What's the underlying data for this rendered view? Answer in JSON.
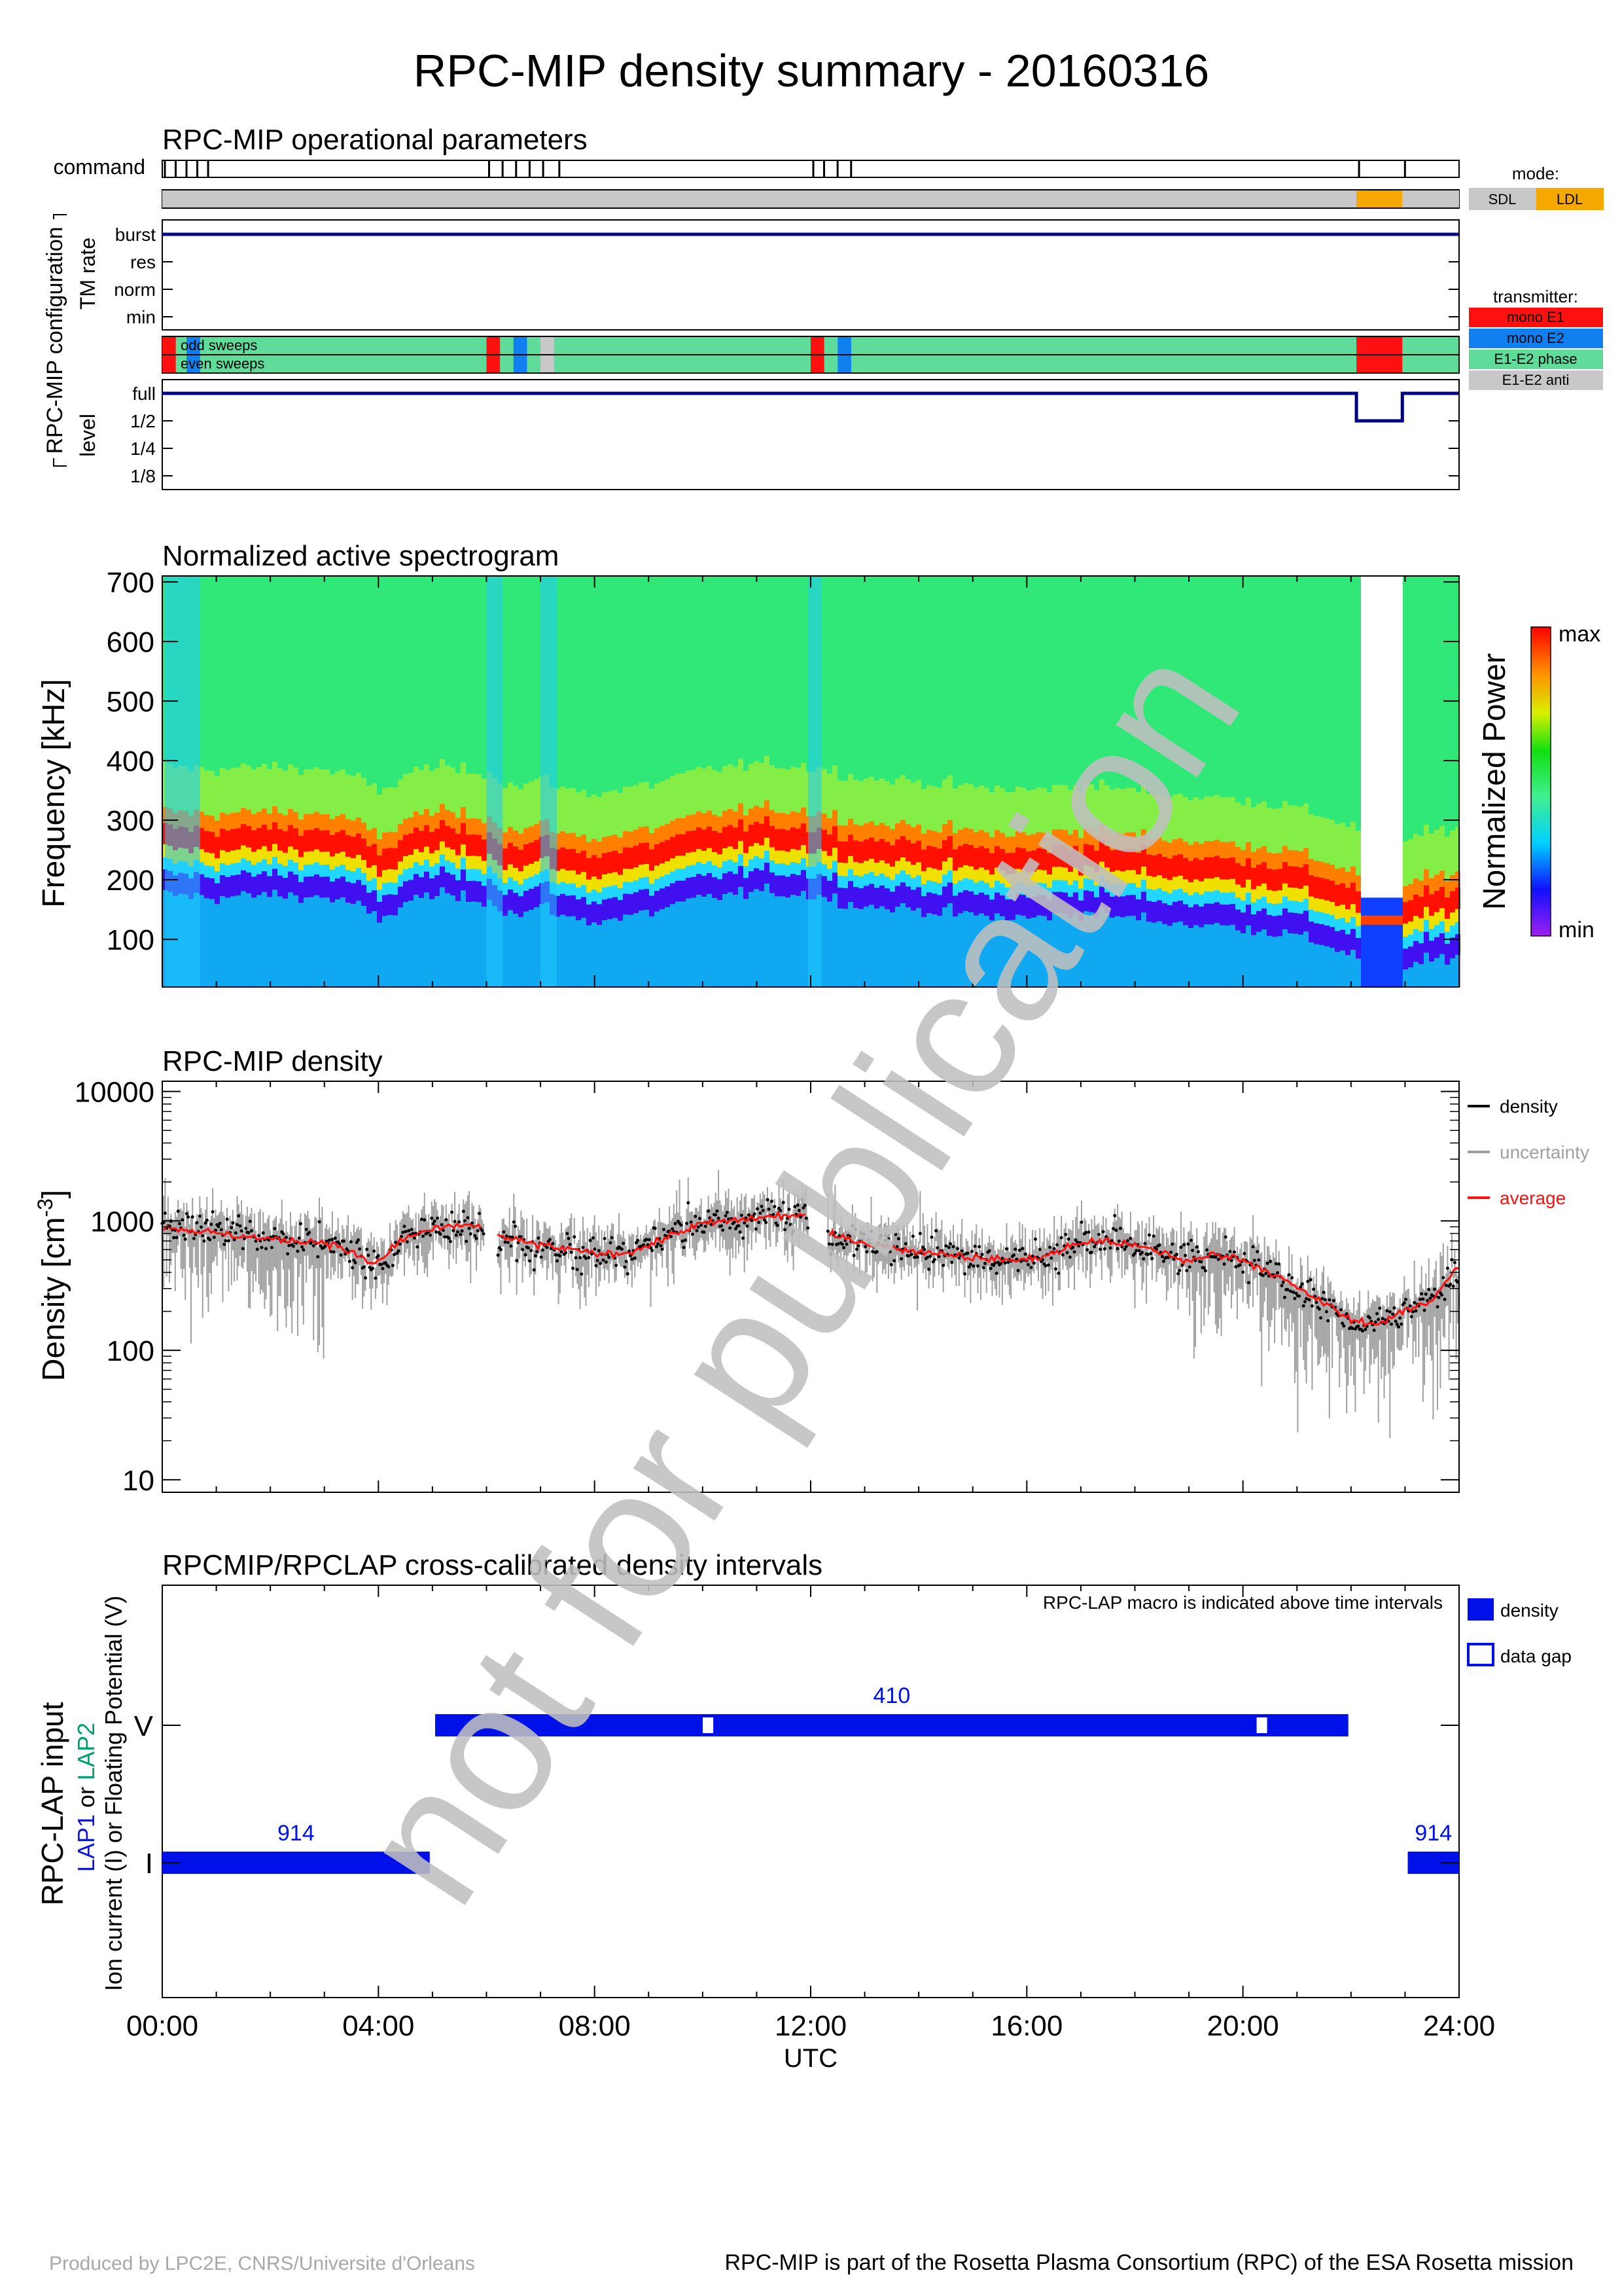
{
  "title": "RPC-MIP density summary - 20160316",
  "watermark": "not for publication",
  "footer": {
    "left": "Produced by LPC2E, CNRS/Universite d'Orleans",
    "right": "RPC-MIP is part of the Rosetta Plasma Consortium (RPC) of the ESA Rosetta mission"
  },
  "time_axis": {
    "label": "UTC",
    "ticks": [
      "00:00",
      "04:00",
      "08:00",
      "12:00",
      "16:00",
      "20:00",
      "24:00"
    ],
    "range_hours": [
      0,
      24
    ]
  },
  "colors": {
    "navy": "#000080",
    "blue": "#0010e8",
    "red": "#ff1010",
    "orange": "#f5a800",
    "gray": "#c8c8c8",
    "green": "#5fdc9a",
    "lapblue": "#1018d8",
    "lapgreen": "#00a070",
    "watermark": "#c0c0c0"
  },
  "ops": {
    "title": "RPC-MIP operational parameters",
    "config_label": "RPC-MIP configuration",
    "command_label": "command",
    "tm_rate_label": "TM rate",
    "tm_rate_levels": [
      "burst",
      "res",
      "norm",
      "min"
    ],
    "level_label": "level",
    "level_levels": [
      "full",
      "1/2",
      "1/4",
      "1/8"
    ],
    "sweeps_odd": "odd sweeps",
    "sweeps_even": "even sweeps",
    "mode_title": "mode:",
    "mode_legend": [
      {
        "label": "SDL",
        "color": "#c8c8c8"
      },
      {
        "label": "LDL",
        "color": "#f5a800"
      }
    ],
    "transmitter_title": "transmitter:",
    "transmitter_legend": [
      {
        "label": "mono E1",
        "color": "#ff1010"
      },
      {
        "label": "mono E2",
        "color": "#1080f0"
      },
      {
        "label": "E1-E2 phase",
        "color": "#5fdc9a"
      },
      {
        "label": "E1-E2 anti",
        "color": "#c8c8c8"
      }
    ],
    "command_hours": [
      0.0,
      0.2,
      0.4,
      0.6,
      0.8,
      6.0,
      6.25,
      6.5,
      6.75,
      7.0,
      7.3,
      12.0,
      12.2,
      12.45,
      12.7,
      22.1,
      22.95
    ],
    "mode_intervals": [
      {
        "start": 0,
        "end": 22.1,
        "mode": "SDL"
      },
      {
        "start": 22.1,
        "end": 22.95,
        "mode": "LDL"
      },
      {
        "start": 22.95,
        "end": 24,
        "mode": "SDL"
      }
    ],
    "transmitter_intervals": [
      {
        "start": 0.0,
        "end": 0.25,
        "tx": "mono E1"
      },
      {
        "start": 0.45,
        "end": 0.7,
        "tx": "mono E2"
      },
      {
        "start": 6.0,
        "end": 6.25,
        "tx": "mono E1"
      },
      {
        "start": 6.5,
        "end": 6.75,
        "tx": "mono E2"
      },
      {
        "start": 7.0,
        "end": 7.25,
        "tx": "E1-E2 anti"
      },
      {
        "start": 12.0,
        "end": 12.25,
        "tx": "mono E1"
      },
      {
        "start": 12.5,
        "end": 12.75,
        "tx": "mono E2"
      },
      {
        "start": 22.1,
        "end": 22.95,
        "tx": "mono E1"
      }
    ],
    "tm_rate_series": [
      {
        "start": 0,
        "end": 24,
        "rate": "burst"
      }
    ],
    "level_series": [
      {
        "start": 0,
        "end": 22.1,
        "level": "full"
      },
      {
        "start": 22.1,
        "end": 22.95,
        "level": "1/2"
      },
      {
        "start": 22.95,
        "end": 24,
        "level": "full"
      }
    ]
  },
  "chart_data": [
    {
      "type": "heatmap",
      "title": "Normalized active spectrogram",
      "ylabel": "Frequency [kHz]",
      "ylim": [
        20,
        710
      ],
      "yticks": [
        100,
        200,
        300,
        400,
        500,
        600,
        700
      ],
      "colorbar_label": "Normalized Power",
      "colorbar_max": "max",
      "colorbar_min": "min",
      "data_gaps_hours": [
        [
          22.1,
          22.95
        ]
      ],
      "ridge_khz": [
        [
          0,
          270
        ],
        [
          1,
          265
        ],
        [
          2,
          270
        ],
        [
          3,
          265
        ],
        [
          3.5,
          255
        ],
        [
          4.0,
          225
        ],
        [
          4.5,
          260
        ],
        [
          5,
          270
        ],
        [
          6,
          260
        ],
        [
          6.5,
          235
        ],
        [
          7,
          250
        ],
        [
          7.5,
          230
        ],
        [
          8,
          225
        ],
        [
          9,
          240
        ],
        [
          10,
          265
        ],
        [
          11,
          275
        ],
        [
          12,
          270
        ],
        [
          13,
          250
        ],
        [
          14,
          245
        ],
        [
          15,
          235
        ],
        [
          16,
          230
        ],
        [
          17,
          240
        ],
        [
          18,
          230
        ],
        [
          19,
          220
        ],
        [
          20,
          215
        ],
        [
          21,
          200
        ],
        [
          22,
          170
        ],
        [
          23,
          150
        ],
        [
          24,
          170
        ]
      ]
    },
    {
      "type": "scatter",
      "title": "RPC-MIP density",
      "ylabel": "Density [cm",
      "ylabel_exp": "-3",
      "ylabel_end": "]",
      "yscale": "log",
      "ylim": [
        8,
        12000
      ],
      "yticks": [
        10,
        100,
        1000,
        10000
      ],
      "legend": [
        "density",
        "uncertainty",
        "average"
      ],
      "data_gaps_hours": [
        [
          5.95,
          6.2
        ],
        [
          11.95,
          12.3
        ]
      ],
      "average": [
        [
          0,
          900
        ],
        [
          0.5,
          850
        ],
        [
          1,
          800
        ],
        [
          1.5,
          760
        ],
        [
          2,
          720
        ],
        [
          2.5,
          700
        ],
        [
          3,
          690
        ],
        [
          3.3,
          620
        ],
        [
          3.6,
          540
        ],
        [
          3.9,
          460
        ],
        [
          4.1,
          520
        ],
        [
          4.4,
          700
        ],
        [
          4.8,
          820
        ],
        [
          5.2,
          880
        ],
        [
          5.6,
          920
        ],
        [
          5.95,
          930
        ],
        [
          6.2,
          760
        ],
        [
          6.6,
          700
        ],
        [
          7,
          650
        ],
        [
          7.5,
          600
        ],
        [
          8,
          560
        ],
        [
          8.5,
          560
        ],
        [
          9,
          640
        ],
        [
          9.5,
          800
        ],
        [
          10,
          950
        ],
        [
          10.5,
          1000
        ],
        [
          11,
          1050
        ],
        [
          11.5,
          1100
        ],
        [
          11.95,
          1100
        ],
        [
          12.3,
          780
        ],
        [
          13,
          680
        ],
        [
          13.5,
          620
        ],
        [
          14,
          580
        ],
        [
          14.5,
          560
        ],
        [
          15,
          520
        ],
        [
          15.5,
          500
        ],
        [
          16,
          500
        ],
        [
          16.5,
          560
        ],
        [
          17,
          680
        ],
        [
          17.5,
          700
        ],
        [
          18,
          640
        ],
        [
          18.5,
          570
        ],
        [
          19,
          480
        ],
        [
          19.5,
          560
        ],
        [
          20,
          500
        ],
        [
          20.5,
          400
        ],
        [
          21,
          300
        ],
        [
          21.5,
          230
        ],
        [
          22,
          170
        ],
        [
          22.5,
          160
        ],
        [
          23,
          200
        ],
        [
          23.5,
          240
        ],
        [
          24,
          450
        ]
      ]
    },
    {
      "type": "bar",
      "title": "RPCMIP/RPCLAP cross-calibrated density intervals",
      "note": "RPC-LAP macro is indicated above time intervals",
      "ylabel_main": "RPC-LAP input",
      "ylabel_lap1": "LAP1",
      "ylabel_or1": " or ",
      "ylabel_lap2": "LAP2",
      "ylabel_sub": "Ion current (I) or Floating Potential (V)",
      "rows": [
        "V",
        "I"
      ],
      "legend": [
        "density",
        "data gap"
      ],
      "intervals": [
        {
          "row": "I",
          "start": 0.0,
          "end": 4.95,
          "macro": "914"
        },
        {
          "row": "V",
          "start": 5.05,
          "end": 21.95,
          "macro": "410"
        },
        {
          "row": "I",
          "start": 23.05,
          "end": 24.0,
          "macro": "914"
        }
      ],
      "gaps": [
        {
          "row": "V",
          "at": 10.1
        },
        {
          "row": "V",
          "at": 20.35
        }
      ]
    }
  ]
}
